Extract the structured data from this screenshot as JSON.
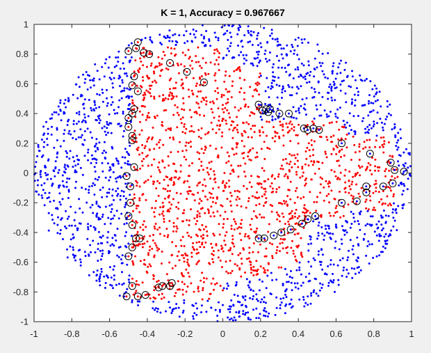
{
  "chart_data": {
    "type": "scatter",
    "title": "K = 1, Accuracy = 0.967667",
    "xlabel": "",
    "ylabel": "",
    "xlim": [
      -1,
      1
    ],
    "ylim": [
      -1,
      1
    ],
    "grid": false,
    "xticks": [
      -1,
      -0.8,
      -0.6,
      -0.4,
      -0.2,
      0,
      0.2,
      0.4,
      0.6,
      0.8,
      1
    ],
    "yticks": [
      -1,
      -0.8,
      -0.6,
      -0.4,
      -0.2,
      0,
      0.2,
      0.4,
      0.6,
      0.8,
      1
    ],
    "xtick_labels": [
      "-1",
      "-0.8",
      "-0.6",
      "-0.4",
      "-0.2",
      "0",
      "0.2",
      "0.4",
      "0.6",
      "0.8",
      "1"
    ],
    "ytick_labels": [
      "-1",
      "-0.8",
      "-0.6",
      "-0.4",
      "-0.2",
      "0",
      "0.2",
      "0.4",
      "0.6",
      "0.8",
      "1"
    ],
    "colors": {
      "class_outer": "#0000ff",
      "class_inner": "#ff0000",
      "misclassified_marker": "#000000",
      "axes_background": "#ffffff",
      "figure_background": "#f0f0f0"
    },
    "series": [
      {
        "class": "outer",
        "color": "#0000ff",
        "points": []
      },
      {
        "class": "inner",
        "color": "#ff0000",
        "points": []
      },
      {
        "class": "misclassified",
        "marker": "circle",
        "color": "#000000",
        "points": [
          [
            -0.5,
            0.82
          ],
          [
            -0.46,
            0.84
          ],
          [
            -0.45,
            0.88
          ],
          [
            -0.42,
            0.81
          ],
          [
            -0.39,
            0.8
          ],
          [
            -0.28,
            0.74
          ],
          [
            -0.19,
            0.68
          ],
          [
            -0.1,
            0.61
          ],
          [
            -0.47,
            0.65
          ],
          [
            -0.48,
            0.59
          ],
          [
            -0.45,
            0.55
          ],
          [
            -0.47,
            0.43
          ],
          [
            -0.48,
            0.4
          ],
          [
            -0.5,
            0.37
          ],
          [
            -0.5,
            0.31
          ],
          [
            -0.48,
            0.25
          ],
          [
            -0.48,
            0.22
          ],
          [
            -0.47,
            0.04
          ],
          [
            -0.51,
            -0.02
          ],
          [
            -0.49,
            -0.09
          ],
          [
            -0.49,
            -0.2
          ],
          [
            -0.5,
            -0.29
          ],
          [
            -0.48,
            -0.35
          ],
          [
            -0.46,
            -0.44
          ],
          [
            -0.44,
            -0.44
          ],
          [
            -0.48,
            -0.5
          ],
          [
            -0.5,
            -0.56
          ],
          [
            -0.48,
            -0.76
          ],
          [
            -0.51,
            -0.83
          ],
          [
            -0.45,
            -0.83
          ],
          [
            -0.41,
            -0.82
          ],
          [
            -0.34,
            -0.77
          ],
          [
            -0.32,
            -0.76
          ],
          [
            -0.28,
            -0.76
          ],
          [
            -0.27,
            -0.74
          ],
          [
            0.19,
            0.46
          ],
          [
            0.21,
            0.42
          ],
          [
            0.23,
            0.43
          ],
          [
            0.24,
            0.41
          ],
          [
            0.25,
            0.43
          ],
          [
            0.3,
            0.4
          ],
          [
            0.35,
            0.4
          ],
          [
            0.43,
            0.3
          ],
          [
            0.45,
            0.29
          ],
          [
            0.48,
            0.3
          ],
          [
            0.51,
            0.29
          ],
          [
            0.63,
            0.2
          ],
          [
            0.78,
            0.13
          ],
          [
            0.89,
            0.07
          ],
          [
            0.91,
            0.02
          ],
          [
            0.96,
            0.01
          ],
          [
            0.9,
            -0.07
          ],
          [
            0.85,
            -0.09
          ],
          [
            0.76,
            -0.09
          ],
          [
            0.76,
            -0.13
          ],
          [
            0.71,
            -0.19
          ],
          [
            0.63,
            -0.2
          ],
          [
            0.49,
            -0.29
          ],
          [
            0.45,
            -0.31
          ],
          [
            0.42,
            -0.34
          ],
          [
            0.36,
            -0.38
          ],
          [
            0.31,
            -0.4
          ],
          [
            0.27,
            -0.42
          ],
          [
            0.22,
            -0.44
          ],
          [
            0.19,
            -0.44
          ]
        ]
      }
    ]
  }
}
